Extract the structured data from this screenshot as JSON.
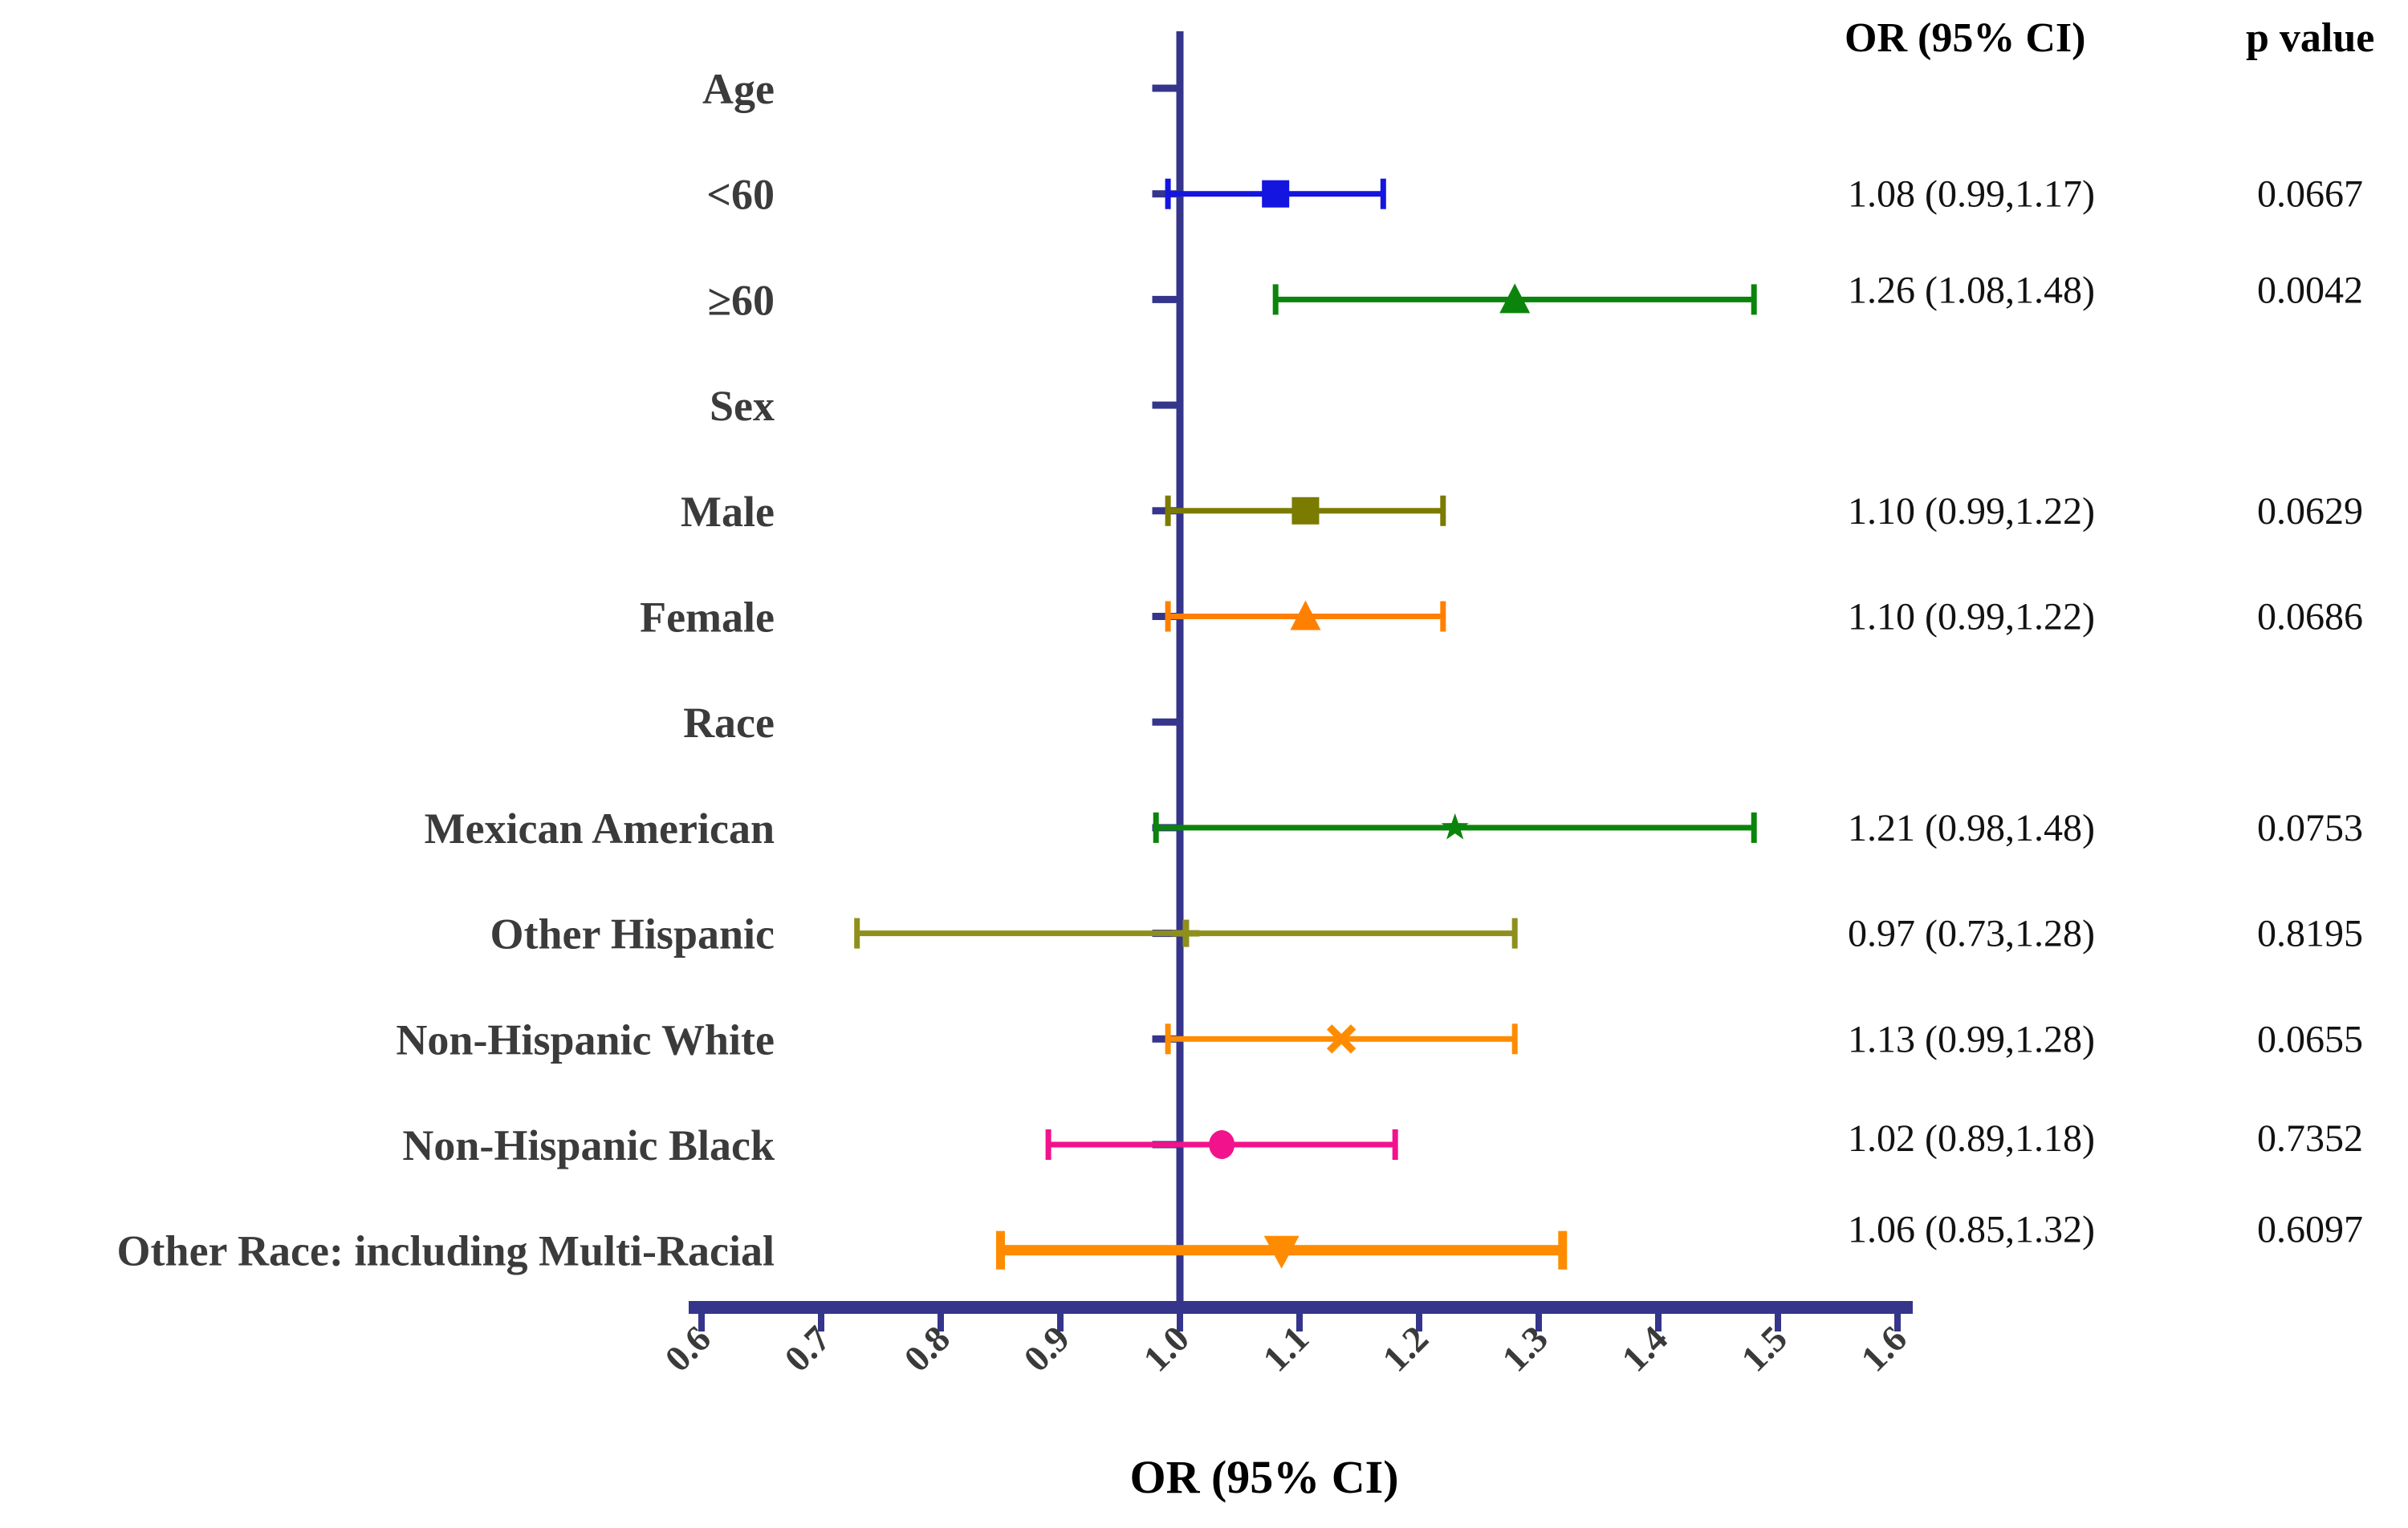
{
  "columns": {
    "or_header": "OR (95% CI)",
    "p_header": "p value"
  },
  "chart_data": {
    "type": "scatter",
    "variant": "forest-plot",
    "title": "",
    "xlabel": "OR (95% CI)",
    "xlim": [
      0.6,
      1.6
    ],
    "x_ticks": [
      "0.6",
      "0.7",
      "0.8",
      "0.9",
      "1.0",
      "1.1",
      "1.2",
      "1.3",
      "1.4",
      "1.5",
      "1.6"
    ],
    "reference_line_x": 1.0,
    "grid": false,
    "legend": false,
    "axis_color": "#35358B",
    "label_color": "#3B3B3B",
    "value_color": "#121212",
    "rows": [
      {
        "label": "Age",
        "group": true
      },
      {
        "label": "<60",
        "or": 1.08,
        "ci_low": 0.99,
        "ci_high": 1.17,
        "p": 0.0667,
        "or_ci_text": "1.08 (0.99,1.17)",
        "p_text": "0.0667",
        "marker": "square",
        "color": "#1515E0"
      },
      {
        "label": "≥60",
        "or": 1.26,
        "ci_low": 1.08,
        "ci_high": 1.48,
        "p": 0.0042,
        "or_ci_text": "1.26 (1.08,1.48)",
        "p_text": "0.0042",
        "marker": "triangle-up",
        "color": "#0B840B"
      },
      {
        "label": "Sex",
        "group": true
      },
      {
        "label": "Male",
        "or": 1.1,
        "ci_low": 0.99,
        "ci_high": 1.22,
        "p": 0.0629,
        "or_ci_text": "1.10 (0.99,1.22)",
        "p_text": "0.0629",
        "marker": "square",
        "color": "#7B7B00"
      },
      {
        "label": "Female",
        "or": 1.1,
        "ci_low": 0.99,
        "ci_high": 1.22,
        "p": 0.0686,
        "or_ci_text": "1.10 (0.99,1.22)",
        "p_text": "0.0686",
        "marker": "triangle-up",
        "color": "#FF8000"
      },
      {
        "label": "Race",
        "group": true
      },
      {
        "label": "Mexican American",
        "or": 1.21,
        "ci_low": 0.98,
        "ci_high": 1.48,
        "p": 0.0753,
        "or_ci_text": "1.21 (0.98,1.48)",
        "p_text": "0.0753",
        "marker": "star",
        "color": "#0B840B"
      },
      {
        "label": "Other Hispanic",
        "or": 0.97,
        "ci_low": 0.73,
        "ci_high": 1.28,
        "p": 0.8195,
        "or_ci_text": "0.97 (0.73,1.28)",
        "p_text": "0.8195",
        "marker": "plus",
        "color": "#8F8F1E"
      },
      {
        "label": "Non-Hispanic White",
        "or": 1.13,
        "ci_low": 0.99,
        "ci_high": 1.28,
        "p": 0.0655,
        "or_ci_text": "1.13 (0.99,1.28)",
        "p_text": "0.0655",
        "marker": "x",
        "color": "#FF8C00"
      },
      {
        "label": "Non-Hispanic Black",
        "or": 1.02,
        "ci_low": 0.89,
        "ci_high": 1.18,
        "p": 0.7352,
        "or_ci_text": "1.02 (0.89,1.18)",
        "p_text": "0.7352",
        "marker": "circle",
        "color": "#F2128C"
      },
      {
        "label": "Other Race: including Multi-Racial",
        "or": 1.06,
        "ci_low": 0.85,
        "ci_high": 1.32,
        "p": 0.6097,
        "or_ci_text": "1.06 (0.85,1.32)",
        "p_text": "0.6097",
        "marker": "triangle-down",
        "color": "#FF8C00",
        "thick": true
      }
    ]
  }
}
